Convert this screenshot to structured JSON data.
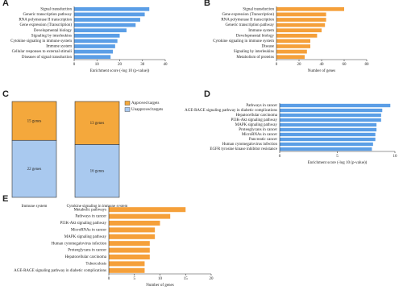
{
  "chart_data": [
    {
      "panel": "A",
      "type": "hbar",
      "xlabel": "Enrichment score (-log 10 (p-value))",
      "color": "#5b9ee6",
      "categories": [
        "Signal transduction",
        "Generic transcription pathway",
        "RNA polymerase II transcription",
        "Gene expression (Transcription)",
        "Developmental biology",
        "Signaling by interleukins",
        "Cytokine signaling in immune system",
        "Immune system",
        "Cellular responses to external stimuli",
        "Diseases of signal transduction"
      ],
      "values": [
        33,
        31,
        29,
        27,
        23,
        20,
        19,
        18,
        17,
        16
      ],
      "xlim": [
        0,
        40
      ],
      "xticks": [
        0,
        10,
        20,
        30,
        40
      ]
    },
    {
      "panel": "B",
      "type": "hbar",
      "xlabel": "Number of genes",
      "color": "#f5a03a",
      "categories": [
        "Signal transduction",
        "Gene expression (Transcription)",
        "RNA polymerase II transcription",
        "Generic transcription pathway",
        "Immune system",
        "Developmental biology",
        "Cytokine signaling in immune system",
        "Disease",
        "Signaling by interleukins",
        "Metabolism of proteins"
      ],
      "values": [
        60,
        44,
        44,
        43,
        40,
        36,
        30,
        30,
        27,
        25
      ],
      "xlim": [
        0,
        80
      ],
      "xticks": [
        0,
        20,
        40,
        60,
        80
      ]
    },
    {
      "panel": "C",
      "type": "stacked_bar",
      "categories": [
        "Immune system",
        "Cytokine signaling in immune system"
      ],
      "series": [
        {
          "name": "Approved targets",
          "color": "#f4a83c",
          "values": [
            15,
            13
          ],
          "value_labels": [
            "15 genes",
            "13 genes"
          ]
        },
        {
          "name": "Unapproved targets",
          "color": "#a9c9ef",
          "values": [
            22,
            16
          ],
          "value_labels": [
            "22 genes",
            "16 genes"
          ]
        }
      ]
    },
    {
      "panel": "D",
      "type": "hbar",
      "xlabel": "Enrichment score (-log 10 (p-value))",
      "color": "#5b9ee6",
      "categories": [
        "Pathways in cancer",
        "AGE-RAGE signaling pathway in diabetic complications",
        "Hepatocellular carcinoma",
        "PI3K-Akt signaling pathway",
        "MAPK signaling pathway",
        "Proteoglycans in cancer",
        "MicroRNAs in cancer",
        "Pancreatic cancer",
        "Human cytomegalovirus infection",
        "EGFR tyrosine kinase inhibitor resistance"
      ],
      "values": [
        9.6,
        8.9,
        8.8,
        8.8,
        8.4,
        8.4,
        8.3,
        8.3,
        8.1,
        8.0
      ],
      "xlim": [
        0,
        10
      ],
      "xticks": [
        0,
        5,
        10
      ]
    },
    {
      "panel": "E",
      "type": "hbar",
      "xlabel": "Number of genes",
      "color": "#f5a03a",
      "categories": [
        "Metabolic pathways",
        "Pathways in cancer",
        "PI3K-Akt signaling pathway",
        "MicroRNAs in cancer",
        "MAPK signaling pathway",
        "Human cytomegalovirus infection",
        "Proteoglycans in cancer",
        "Hepatocellular carcinoma",
        "Tuberculosis",
        "AGE-RAGE signaling pathway in diabetic complications"
      ],
      "values": [
        15,
        12,
        10,
        9,
        9,
        8,
        8,
        8,
        7,
        7
      ],
      "xlim": [
        0,
        20
      ],
      "xticks": [
        0,
        5,
        10,
        15,
        20
      ]
    }
  ]
}
